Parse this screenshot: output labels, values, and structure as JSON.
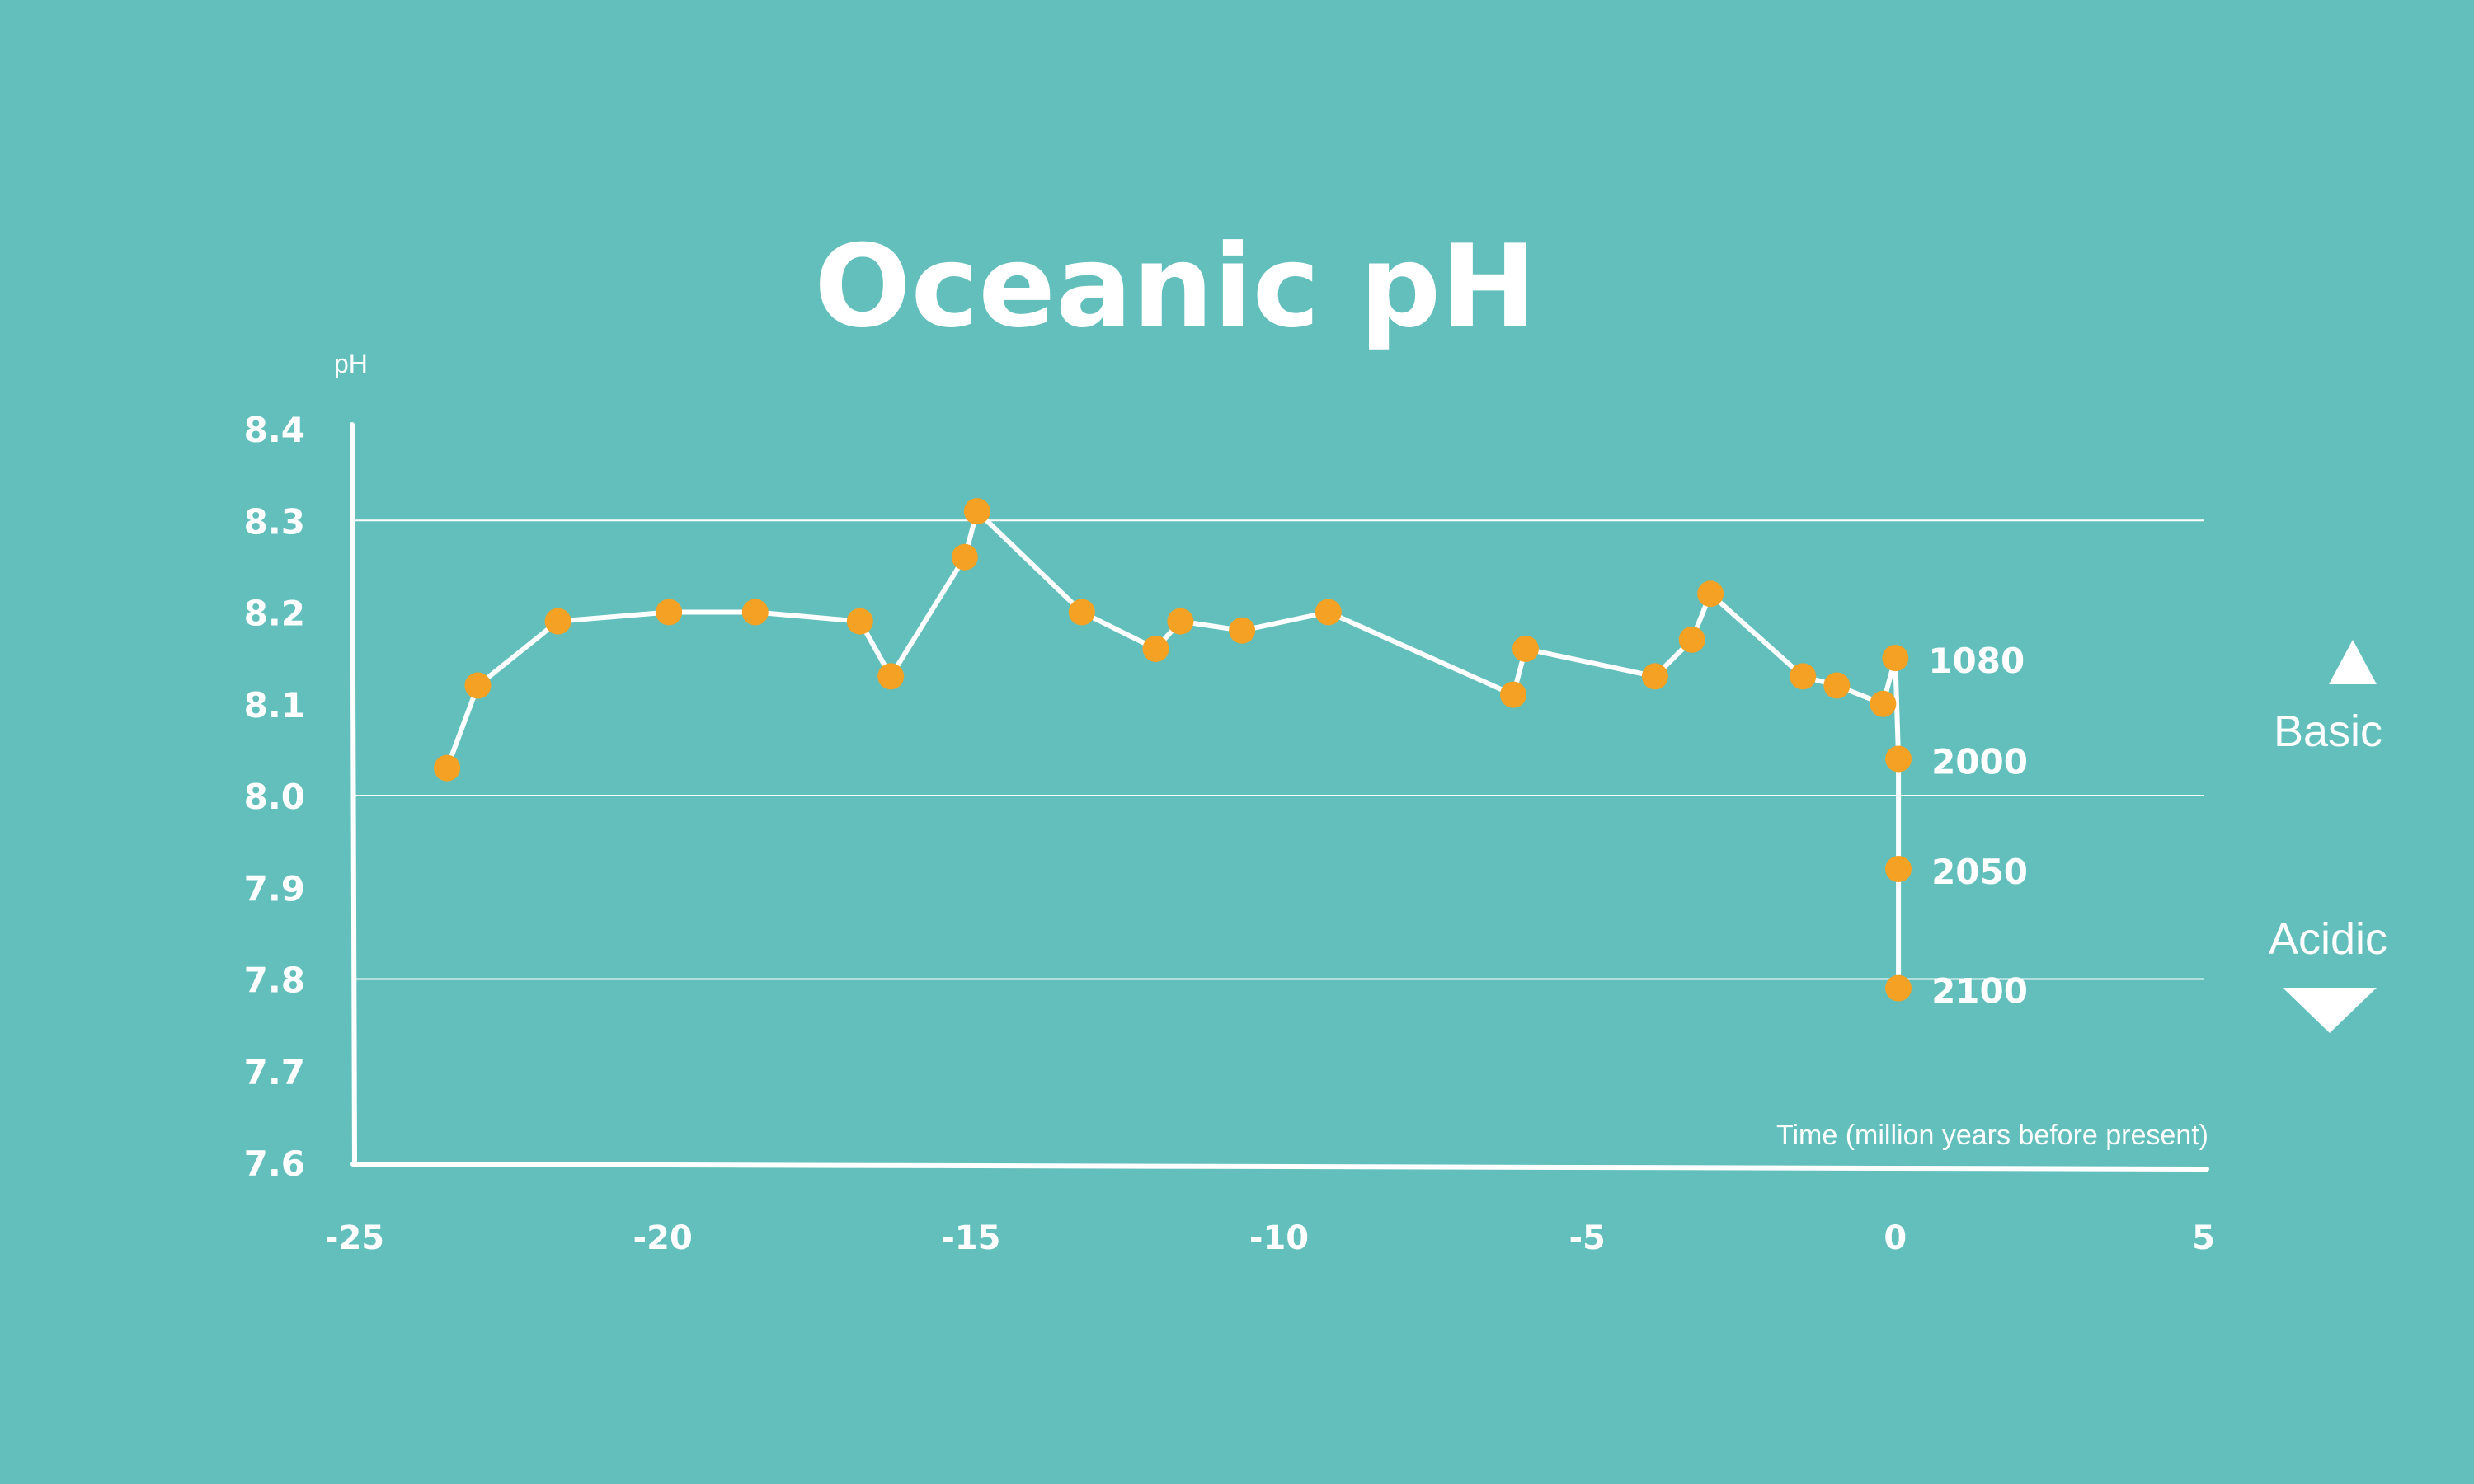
{
  "colors": {
    "background": "#62bfbb",
    "line": "#ffffff",
    "marker": "#f4a124",
    "text": "#ffffff"
  },
  "chart_data": {
    "type": "line",
    "title": "Oceanic pH",
    "xlabel": "Time (million years before present)",
    "ylabel": "pH",
    "xlim": [
      -25,
      5
    ],
    "ylim": [
      7.6,
      8.4
    ],
    "x_ticks": [
      -25,
      -20,
      -15,
      -10,
      -5,
      0,
      5
    ],
    "x_tick_labels": [
      "-25",
      "-20",
      "-15",
      "-10",
      "-5",
      "0",
      "5"
    ],
    "y_ticks": [
      8.4,
      8.3,
      8.2,
      8.1,
      8.0,
      7.9,
      7.8,
      7.7,
      7.6
    ],
    "y_tick_labels": [
      "8.4",
      "8.3",
      "8.2",
      "8.1",
      "8.0",
      "7.9",
      "7.8",
      "7.7",
      "7.6"
    ],
    "gridlines_y": [
      8.3,
      8.0,
      7.8
    ],
    "series": [
      {
        "points": [
          {
            "x": -23.5,
            "y": 8.03
          },
          {
            "x": -23.0,
            "y": 8.12
          },
          {
            "x": -21.7,
            "y": 8.19
          },
          {
            "x": -19.9,
            "y": 8.2
          },
          {
            "x": -18.5,
            "y": 8.2
          },
          {
            "x": -16.8,
            "y": 8.19
          },
          {
            "x": -16.3,
            "y": 8.13
          },
          {
            "x": -15.1,
            "y": 8.26
          },
          {
            "x": -14.9,
            "y": 8.31
          },
          {
            "x": -13.2,
            "y": 8.2
          },
          {
            "x": -12.0,
            "y": 8.16
          },
          {
            "x": -11.6,
            "y": 8.19
          },
          {
            "x": -10.6,
            "y": 8.18
          },
          {
            "x": -9.2,
            "y": 8.2
          },
          {
            "x": -6.2,
            "y": 8.11
          },
          {
            "x": -6.0,
            "y": 8.16
          },
          {
            "x": -3.9,
            "y": 8.13
          },
          {
            "x": -3.3,
            "y": 8.17
          },
          {
            "x": -3.0,
            "y": 8.22
          },
          {
            "x": -1.5,
            "y": 8.13
          },
          {
            "x": -0.95,
            "y": 8.12
          },
          {
            "x": -0.2,
            "y": 8.1
          },
          {
            "x": 0.0,
            "y": 8.15
          },
          {
            "x": 0.05,
            "y": 8.04
          },
          {
            "x": 0.05,
            "y": 7.92
          },
          {
            "x": 0.05,
            "y": 7.79
          }
        ]
      }
    ],
    "annotations": [
      {
        "text": "1080",
        "x": 0.0,
        "y": 8.15
      },
      {
        "text": "2000",
        "x": 0.05,
        "y": 8.04
      },
      {
        "text": "2050",
        "x": 0.05,
        "y": 7.92
      },
      {
        "text": "2100",
        "x": 0.05,
        "y": 7.79
      }
    ],
    "legend_side": {
      "basic_label": "Basic",
      "acidic_label": "Acidic"
    },
    "grid": true
  }
}
